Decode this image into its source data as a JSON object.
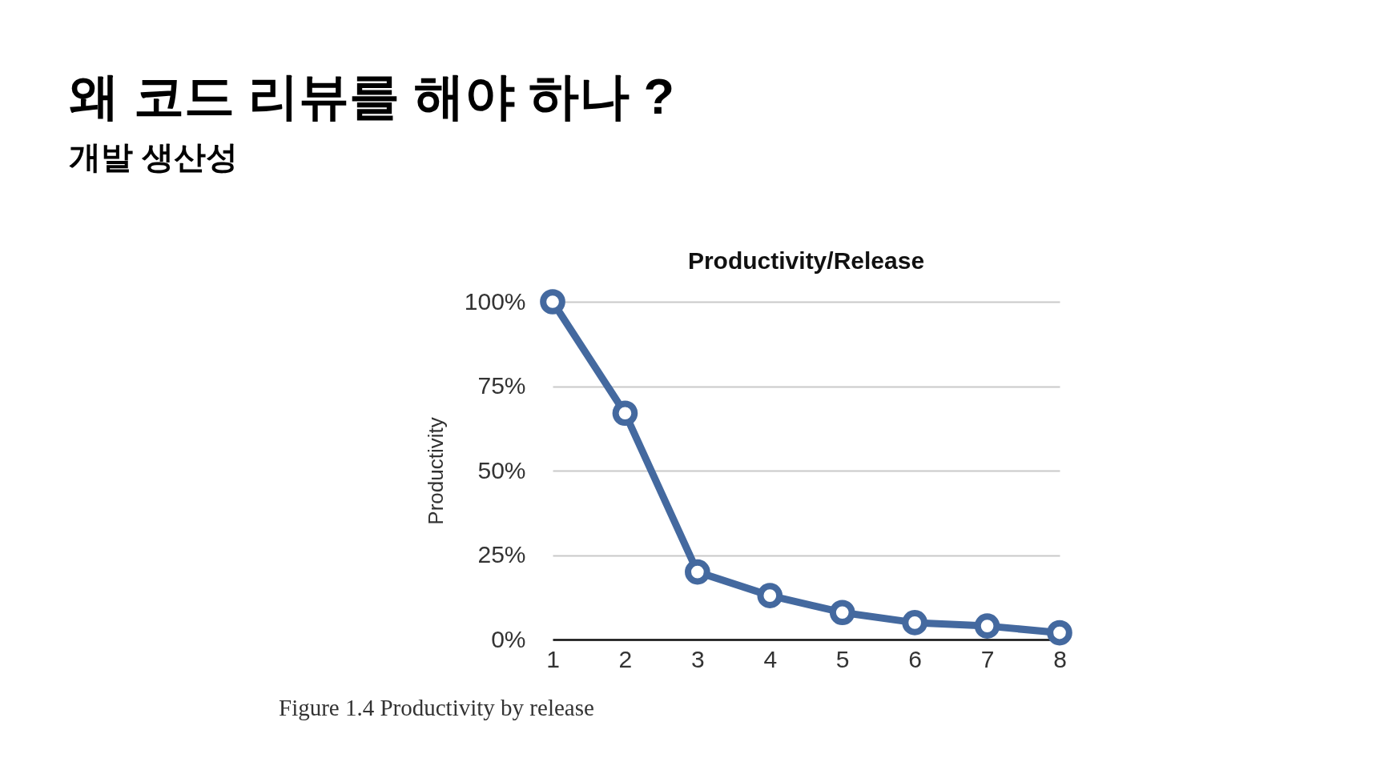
{
  "chart_data": {
    "type": "line",
    "title": "Productivity/Release",
    "ylabel": "Productivity",
    "categories": [
      "1",
      "2",
      "3",
      "4",
      "5",
      "6",
      "7",
      "8"
    ],
    "series": [
      {
        "color": "#44699f",
        "values": [
          100,
          67,
          20,
          13,
          8,
          5,
          4,
          2
        ]
      }
    ],
    "ylim": [
      0,
      100
    ],
    "yticks": [
      {
        "value": 0,
        "label": "0%"
      },
      {
        "value": 25,
        "label": "25%"
      },
      {
        "value": 50,
        "label": "50%"
      },
      {
        "value": 75,
        "label": "75%"
      },
      {
        "value": 100,
        "label": "100%"
      }
    ],
    "grid": "y",
    "marker": "circle",
    "line_style": "solid",
    "annotations": [
      "왜 코드 리뷰를 해야 하나 ?",
      "개발 생산성",
      "Figure 1.4 Productivity by release"
    ]
  }
}
